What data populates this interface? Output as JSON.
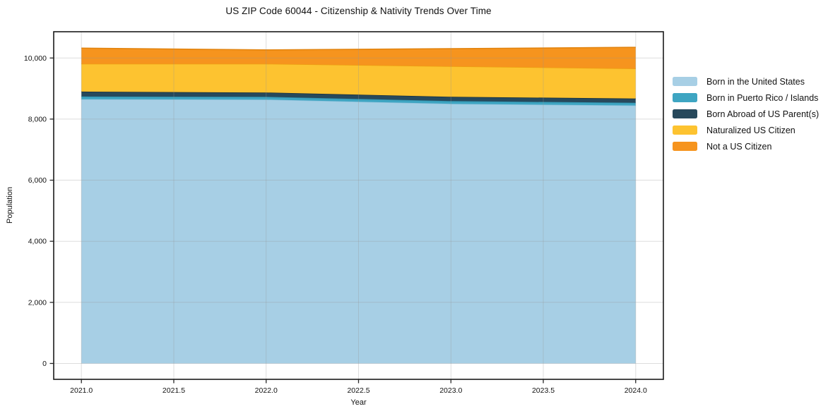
{
  "title": "US ZIP Code 60044 - Citizenship & Nativity Trends Over Time",
  "chart_data": {
    "type": "area",
    "stacked": true,
    "title": "US ZIP Code 60044 - Citizenship & Nativity Trends Over Time",
    "xlabel": "Year",
    "ylabel": "Population",
    "x": [
      2021,
      2022,
      2023,
      2024
    ],
    "series": [
      {
        "name": "Born in the United States",
        "color": "#a7cfe5",
        "edge_color": "#8cc0db",
        "values": [
          8650,
          8640,
          8500,
          8445
        ]
      },
      {
        "name": "Born in Puerto Rico / Islands",
        "color": "#3ea5c2",
        "edge_color": "#2e8ba6",
        "values": [
          90,
          90,
          90,
          90
        ]
      },
      {
        "name": "Born Abroad of US Parent(s)",
        "color": "#27495c",
        "edge_color": "#182f3d",
        "values": [
          160,
          140,
          140,
          140
        ]
      },
      {
        "name": "Naturalized US Citizen",
        "color": "#fdc330",
        "edge_color": "#ed9f10",
        "values": [
          910,
          940,
          1000,
          980
        ]
      },
      {
        "name": "Not a US Citizen",
        "color": "#f6941e",
        "edge_color": "#e1820c",
        "values": [
          515,
          455,
          575,
          695
        ]
      }
    ],
    "stack_totals": [
      10325,
      10265,
      10305,
      10350
    ],
    "xlim": [
      2020.85,
      2024.15
    ],
    "ylim": [
      -520,
      10860
    ],
    "x_ticks": [
      2021.0,
      2021.5,
      2022.0,
      2022.5,
      2023.0,
      2023.5,
      2024.0
    ],
    "x_tick_labels": [
      "2021.0",
      "2021.5",
      "2022.0",
      "2022.5",
      "2023.0",
      "2023.5",
      "2024.0"
    ],
    "y_ticks": [
      0,
      2000,
      4000,
      6000,
      8000,
      10000
    ],
    "y_tick_labels": [
      "0",
      "2,000",
      "4,000",
      "6,000",
      "8,000",
      "10,000"
    ],
    "grid": true,
    "legend_position": "right",
    "colors": {
      "spine": "#1a1a1a",
      "tick": "#262626",
      "grid": "#969696",
      "text": "#111111",
      "background": "#ffffff"
    }
  }
}
